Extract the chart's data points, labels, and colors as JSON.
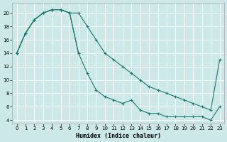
{
  "xlabel": "Humidex (Indice chaleur)",
  "bg_color": "#cce8e8",
  "grid_color": "#b0d0d0",
  "line_color": "#1a7a6e",
  "xlim": [
    -0.5,
    23.5
  ],
  "ylim": [
    3.5,
    21.5
  ],
  "xticks": [
    0,
    1,
    2,
    3,
    4,
    5,
    6,
    7,
    8,
    9,
    10,
    11,
    12,
    13,
    14,
    15,
    16,
    17,
    18,
    19,
    20,
    21,
    22,
    23
  ],
  "yticks": [
    4,
    6,
    8,
    10,
    12,
    14,
    16,
    18,
    20
  ],
  "line1_x": [
    0,
    1,
    2,
    3,
    4,
    5,
    6,
    7,
    8,
    9,
    10,
    11,
    12,
    13,
    14,
    15,
    16,
    17,
    18,
    19,
    20,
    21,
    22,
    23
  ],
  "line1_y": [
    14,
    17,
    19,
    20,
    20.5,
    20.5,
    20,
    20,
    18,
    16,
    14,
    13,
    12,
    11,
    10,
    9,
    8.5,
    8,
    7.5,
    7,
    6.5,
    6,
    5.5,
    13
  ],
  "line2_x": [
    0,
    1,
    2,
    3,
    4,
    5,
    6,
    7,
    8,
    9,
    10,
    11,
    12,
    13,
    14,
    15,
    16,
    17,
    18,
    19,
    20,
    21,
    22,
    23
  ],
  "line2_y": [
    14,
    17,
    19,
    20,
    20.5,
    20.5,
    20,
    14,
    11,
    8.5,
    7.5,
    7,
    6.5,
    7,
    5.5,
    5,
    5,
    4.5,
    4.5,
    4.5,
    4.5,
    4.5,
    4,
    6
  ],
  "line3_x": [
    0,
    1,
    2,
    3,
    4,
    5,
    6,
    7
  ],
  "line3_y": [
    14,
    17,
    19,
    20,
    20.5,
    20.5,
    20,
    14
  ]
}
